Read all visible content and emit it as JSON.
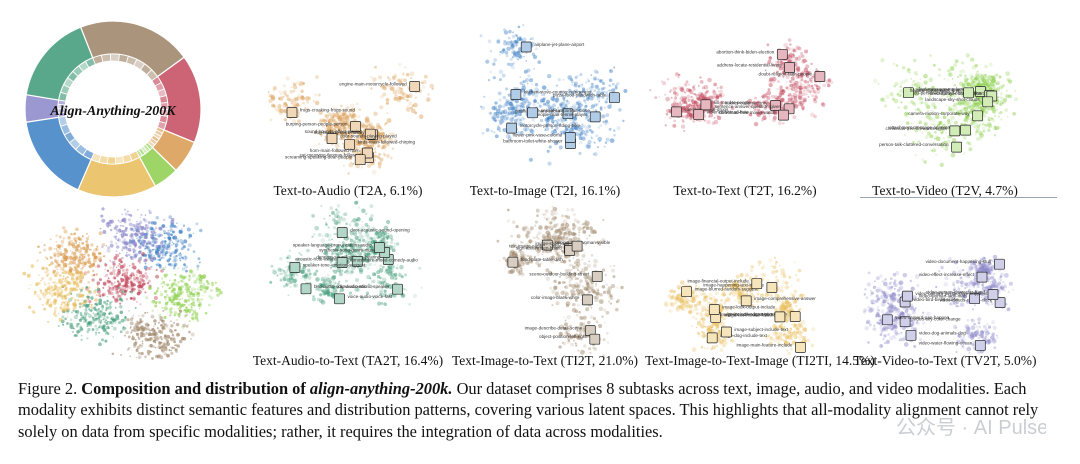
{
  "figure": {
    "center_label": "Align-Anything-200K",
    "panels": [
      {
        "id": "t2a",
        "label": "Text-to-Audio (T2A, 6.1%)",
        "color": "#d99a4e",
        "col": 0,
        "row": 0,
        "notes": [
          "cat-meowing-thomas-followed",
          "dog-barking-dogs-mainly",
          "birds-main-followed-chirping",
          "frogs-croaking-frogs-sound",
          "burping-person-people-person",
          "horn-main-followed-horn",
          "engine-main-motorcycle-followed",
          "screaming-speaking-dear-people",
          "sound-sounds-effect-playing",
          "door-sounds-playing-played"
        ]
      },
      {
        "id": "t2i",
        "label": "Text-to-Image (T2I, 16.1%)",
        "color": "#3c7fc4",
        "col": 1,
        "row": 0,
        "notes": [
          "bathroom-toilet-white-shower",
          "kitchen-stove-counter-refrigerator",
          "motorcycle-person-riding-bike",
          "giraffe-elephant-zebra",
          "airplane-jet-plane-airport",
          "people-man-tennis-player",
          "pizza-food-sandwich-table",
          "flower-pink-vase-colorful",
          "animal-cat-portrait-close"
        ]
      },
      {
        "id": "t2t",
        "label": "Text-to-Text (T2T, 16.2%)",
        "color": "#c44a5e",
        "col": 2,
        "row": 0,
        "notes": [
          "hacker-code-security",
          "abortion-think-biden-election",
          "car-steal-illegal-drugs",
          "violence-sexual-hate",
          "doubt-religion-faith-people",
          "kill-murder-people",
          "sentence-answer-question-given",
          "download-free-movie-watch",
          "address-locate-residential-living"
        ]
      },
      {
        "id": "t2v",
        "label": "Text-to-Video (T2V, 4.7%)",
        "color": "#8ccf4c",
        "col": 3,
        "row": 0,
        "notes": [
          "font-message-modern-text",
          "person-talk-cluttered-conversation",
          "bedu-person-cluttered-conversation",
          "camera-motion-corporate-way",
          "attachment-message-animate-toy",
          "beer-camera-drink-snow",
          "seed-sprayer-carbon-chart",
          "flowers-flower-static-shot",
          "christmas-tree-fireworks-lights",
          "landscape-sky-shot-clouds"
        ]
      },
      {
        "id": "ta2t",
        "label": "Text-Audio-to-Text (TA2T, 16.4%)",
        "color": "#3e9a78",
        "col": 0,
        "row": 1,
        "notes": [
          "duration-sound-scream-hearing",
          "bird-audio-sound-acoustic",
          "acoustic-note-aware-piano",
          "voice-audio-voice-fast",
          "door-acoustic-sound-opening",
          "atmosphere-mood-comedy-audio",
          "clip-audio-sound-speaker",
          "synthesis-song-genre-music",
          "speaker-tone-emotion-suggest",
          "speaker-language-pronunciation-audio"
        ]
      },
      {
        "id": "ti2t",
        "label": "Text-Image-to-Text (TI2T, 21.0%)",
        "color": "#9c8264",
        "col": 1,
        "row": 1,
        "notes": [
          "image-describe-detail-scene",
          "text-image-caption-visible",
          "people-man-woman-visible",
          "color-image-black-white",
          "food-plate-table-dish",
          "sign-text-written-board",
          "scene-outdoor-building-street",
          "object-position-left-right",
          "image-style-logo"
        ]
      },
      {
        "id": "ti2ti",
        "label": "Text-Image-to-Text-Image (TI2TI, 14.5%)",
        "color": "#e8bb56",
        "col": 2,
        "row": 1,
        "notes": [
          "image-write-description-given",
          "image-cat-include-features",
          "image-dog-include-text",
          "image-comprehensive-answer",
          "image-blurred-random-suggest",
          "image-main-feature-include",
          "image-happening-text-include",
          "image-include-output-text",
          "image-look-output-include",
          "image-subject-include-text",
          "image-financial-output-include"
        ]
      },
      {
        "id": "tv2t",
        "label": "Text-Video-to-Text (TV2T, 5.0%)",
        "color": "#8a86c8",
        "col": 3,
        "row": 1,
        "notes": [
          "video-clouds-clouds-clock",
          "video-effect-increase-effect",
          "video-sky-color-change",
          "video-bird-birds-scene",
          "video-water-flowing-ocean",
          "video-dog-animals-dog",
          "video-woman-lady-man",
          "video-person-character-hand",
          "video-document-happening-stuff",
          "video-camera-pan-happen",
          "video-camera-perspective-happens"
        ]
      }
    ]
  },
  "caption": {
    "prefix": "Figure 2.",
    "title_bold": "Composition and distribution of",
    "title_italic": "align-anything-200k.",
    "body": "Our dataset comprises 8 subtasks across text, image, audio, and video modalities. Each modality exhibits distinct semantic features and distribution patterns, covering various latent spaces. This highlights that all-modality alignment cannot rely solely on data from specific modalities; rather, it requires the integration of data across modalities."
  },
  "watermark": "公众号 · AI Pulse"
}
